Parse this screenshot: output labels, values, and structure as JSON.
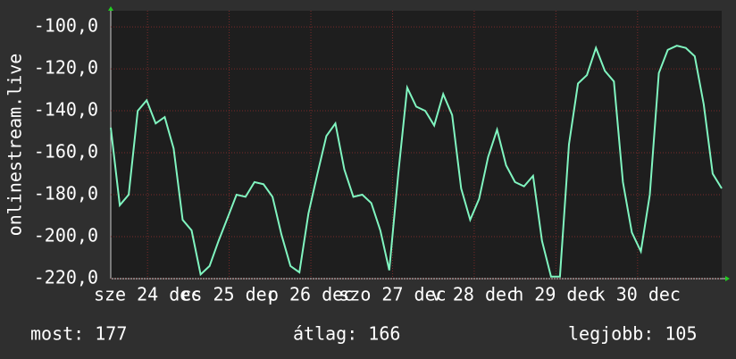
{
  "chart_data": {
    "type": "line",
    "ylabel": "onlinestream.live",
    "x": [
      0,
      0.11,
      0.22,
      0.33,
      0.44,
      0.55,
      0.66,
      0.77,
      0.88,
      0.99,
      1.1,
      1.21,
      1.32,
      1.43,
      1.54,
      1.65,
      1.76,
      1.87,
      1.98,
      2.09,
      2.2,
      2.31,
      2.42,
      2.53,
      2.64,
      2.75,
      2.86,
      2.97,
      3.08,
      3.19,
      3.3,
      3.41,
      3.52,
      3.63,
      3.74,
      3.85,
      3.96,
      4.07,
      4.18,
      4.29,
      4.4,
      4.51,
      4.62,
      4.73,
      4.84,
      4.95,
      5.06,
      5.17,
      5.28,
      5.39,
      5.5,
      5.61,
      5.72,
      5.83,
      5.94,
      6.05,
      6.16,
      6.27,
      6.38,
      6.49,
      6.6,
      6.71,
      6.82,
      6.93,
      7.04,
      7.15,
      7.26,
      7.37,
      7.48
    ],
    "series": [
      {
        "color": "#80f5c0",
        "values": [
          -148,
          -185,
          -180,
          -140,
          -135,
          -146,
          -143,
          -158,
          -192,
          -197,
          -218,
          -214,
          -202,
          -191,
          -180,
          -181,
          -174,
          -175,
          -181,
          -199,
          -214,
          -217,
          -189,
          -170,
          -152,
          -146,
          -168,
          -181,
          -180,
          -184,
          -197,
          -216,
          -170,
          -129,
          -138,
          -140,
          -147,
          -132,
          -142,
          -177,
          -192,
          -182,
          -162,
          -149,
          -166,
          -174,
          -176,
          -171,
          -202,
          -219,
          -219,
          -156,
          -127,
          -123,
          -110,
          -121,
          -126,
          -174,
          -198,
          -207,
          -180,
          -122,
          -111,
          -109,
          -110,
          -114,
          -137,
          -170,
          -177
        ]
      }
    ],
    "xlim": [
      0,
      7.48
    ],
    "xticks": [
      {
        "value": 0.45,
        "label": "sze 24 dec"
      },
      {
        "value": 1.45,
        "label": "cs 25 dec"
      },
      {
        "value": 2.45,
        "label": "p 26 dec"
      },
      {
        "value": 3.45,
        "label": "szo 27 dec"
      },
      {
        "value": 4.45,
        "label": "v 28 dec"
      },
      {
        "value": 5.45,
        "label": "h 29 dec"
      },
      {
        "value": 6.45,
        "label": "k 30 dec"
      }
    ],
    "ylim": [
      -220,
      -92.3
    ],
    "yticks": [
      {
        "value": -220,
        "label": "-220,0"
      },
      {
        "value": -200,
        "label": "-200,0"
      },
      {
        "value": -180,
        "label": "-180,0"
      },
      {
        "value": -160,
        "label": "-160,0"
      },
      {
        "value": -140,
        "label": "-140,0"
      },
      {
        "value": -120,
        "label": "-120,0"
      },
      {
        "value": -100,
        "label": "-100,0"
      }
    ],
    "grid": true
  },
  "footer": {
    "current": "most: 177",
    "average": "átlag: 166",
    "best": "legjobb: 105"
  }
}
